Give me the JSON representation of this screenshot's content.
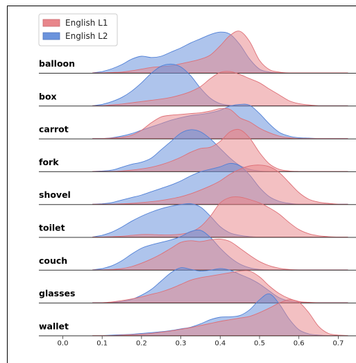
{
  "chart_data": {
    "type": "area",
    "subtype": "ridgeline-density",
    "x_ticks": [
      "0.0",
      "0.1",
      "0.2",
      "0.3",
      "0.4",
      "0.5",
      "0.6",
      "0.7"
    ],
    "x_tick_values": [
      0.0,
      0.1,
      0.2,
      0.3,
      0.4,
      0.5,
      0.6,
      0.7
    ],
    "xlim": [
      -0.05,
      0.72
    ],
    "legend": {
      "position": "top-left"
    },
    "series": [
      {
        "name": "English L1",
        "color": "#e8868b"
      },
      {
        "name": "English L2",
        "color": "#6b93dc"
      }
    ],
    "x": [
      0.1,
      0.125,
      0.15,
      0.175,
      0.2,
      0.225,
      0.25,
      0.275,
      0.3,
      0.325,
      0.35,
      0.375,
      0.4,
      0.425,
      0.45,
      0.475,
      0.5,
      0.525,
      0.55,
      0.575,
      0.6,
      0.625,
      0.65,
      0.675,
      0.7
    ],
    "rows": [
      {
        "label": "balloon",
        "l1": [
          0,
          0.01,
          0.02,
          0.05,
          0.09,
          0.13,
          0.15,
          0.17,
          0.22,
          0.27,
          0.33,
          0.43,
          0.65,
          0.9,
          1.0,
          0.75,
          0.3,
          0.08,
          0.02,
          0,
          0,
          0,
          0,
          0,
          0
        ],
        "l2": [
          0.03,
          0.1,
          0.2,
          0.33,
          0.4,
          0.37,
          0.4,
          0.5,
          0.6,
          0.72,
          0.82,
          0.92,
          0.98,
          0.93,
          0.68,
          0.33,
          0.09,
          0.02,
          0,
          0,
          0,
          0,
          0,
          0,
          0
        ]
      },
      {
        "label": "box",
        "l1": [
          0,
          0.02,
          0.04,
          0.07,
          0.1,
          0.13,
          0.16,
          0.2,
          0.26,
          0.34,
          0.46,
          0.65,
          0.8,
          0.82,
          0.75,
          0.65,
          0.55,
          0.4,
          0.26,
          0.12,
          0.05,
          0.02,
          0,
          0,
          0
        ],
        "l2": [
          0.03,
          0.1,
          0.2,
          0.35,
          0.55,
          0.78,
          0.95,
          1.0,
          0.93,
          0.72,
          0.42,
          0.18,
          0.05,
          0.01,
          0,
          0,
          0,
          0,
          0,
          0,
          0,
          0,
          0,
          0,
          0
        ]
      },
      {
        "label": "carrot",
        "l1": [
          0,
          0.01,
          0.03,
          0.08,
          0.2,
          0.38,
          0.52,
          0.56,
          0.58,
          0.6,
          0.62,
          0.66,
          0.72,
          0.7,
          0.5,
          0.4,
          0.25,
          0.14,
          0.06,
          0.02,
          0,
          0,
          0,
          0,
          0
        ],
        "l2": [
          0,
          0.02,
          0.06,
          0.12,
          0.2,
          0.28,
          0.36,
          0.44,
          0.5,
          0.55,
          0.58,
          0.62,
          0.68,
          0.78,
          0.82,
          0.8,
          0.6,
          0.35,
          0.15,
          0.06,
          0.02,
          0.01,
          0,
          0,
          0
        ]
      },
      {
        "label": "fork",
        "l1": [
          0,
          0,
          0.01,
          0.03,
          0.06,
          0.1,
          0.16,
          0.24,
          0.34,
          0.46,
          0.55,
          0.58,
          0.72,
          0.95,
          1.0,
          0.8,
          0.45,
          0.18,
          0.05,
          0.01,
          0,
          0,
          0,
          0,
          0
        ],
        "l2": [
          0.01,
          0.03,
          0.1,
          0.17,
          0.22,
          0.32,
          0.52,
          0.72,
          0.92,
          1.0,
          0.95,
          0.78,
          0.55,
          0.32,
          0.14,
          0.05,
          0.01,
          0,
          0,
          0,
          0,
          0,
          0,
          0,
          0
        ]
      },
      {
        "label": "shovel",
        "l1": [
          0,
          0,
          0.01,
          0.02,
          0.04,
          0.06,
          0.09,
          0.13,
          0.18,
          0.25,
          0.34,
          0.44,
          0.56,
          0.72,
          0.84,
          0.92,
          0.94,
          0.9,
          0.76,
          0.52,
          0.28,
          0.12,
          0.05,
          0.02,
          0
        ],
        "l2": [
          0.01,
          0.04,
          0.1,
          0.16,
          0.22,
          0.3,
          0.38,
          0.46,
          0.56,
          0.68,
          0.78,
          0.84,
          0.9,
          0.98,
          0.92,
          0.7,
          0.4,
          0.18,
          0.07,
          0.02,
          0,
          0,
          0,
          0,
          0
        ]
      },
      {
        "label": "toilet",
        "l1": [
          0,
          0.01,
          0.02,
          0.04,
          0.06,
          0.06,
          0.05,
          0.05,
          0.07,
          0.12,
          0.25,
          0.5,
          0.82,
          0.95,
          0.96,
          0.9,
          0.82,
          0.7,
          0.55,
          0.35,
          0.18,
          0.08,
          0.03,
          0.01,
          0
        ],
        "l2": [
          0.04,
          0.12,
          0.24,
          0.38,
          0.5,
          0.6,
          0.68,
          0.74,
          0.78,
          0.8,
          0.72,
          0.5,
          0.25,
          0.1,
          0.04,
          0.01,
          0,
          0,
          0,
          0,
          0,
          0,
          0,
          0,
          0
        ]
      },
      {
        "label": "couch",
        "l1": [
          0,
          0.01,
          0.03,
          0.08,
          0.16,
          0.26,
          0.38,
          0.52,
          0.66,
          0.7,
          0.68,
          0.72,
          0.74,
          0.68,
          0.52,
          0.35,
          0.2,
          0.1,
          0.04,
          0.01,
          0,
          0,
          0,
          0,
          0
        ],
        "l2": [
          0.03,
          0.1,
          0.22,
          0.38,
          0.52,
          0.6,
          0.66,
          0.72,
          0.8,
          0.92,
          0.95,
          0.78,
          0.52,
          0.3,
          0.14,
          0.05,
          0.01,
          0,
          0,
          0,
          0,
          0,
          0,
          0,
          0
        ]
      },
      {
        "label": "glasses",
        "l1": [
          0,
          0.02,
          0.05,
          0.09,
          0.14,
          0.2,
          0.26,
          0.34,
          0.44,
          0.54,
          0.6,
          0.64,
          0.68,
          0.72,
          0.76,
          0.76,
          0.62,
          0.4,
          0.22,
          0.1,
          0.03,
          0.01,
          0,
          0,
          0
        ],
        "l2": [
          0,
          0.01,
          0.03,
          0.08,
          0.18,
          0.32,
          0.52,
          0.72,
          0.84,
          0.8,
          0.76,
          0.78,
          0.82,
          0.78,
          0.68,
          0.58,
          0.45,
          0.28,
          0.12,
          0.04,
          0.01,
          0,
          0,
          0,
          0
        ]
      },
      {
        "label": "wallet",
        "l1": [
          0,
          0,
          0.01,
          0.02,
          0.03,
          0.05,
          0.08,
          0.11,
          0.15,
          0.19,
          0.24,
          0.29,
          0.34,
          0.38,
          0.42,
          0.46,
          0.55,
          0.66,
          0.78,
          0.86,
          0.8,
          0.55,
          0.22,
          0.05,
          0.01
        ],
        "l2": [
          0,
          0.01,
          0.02,
          0.03,
          0.05,
          0.07,
          0.09,
          0.12,
          0.16,
          0.2,
          0.28,
          0.38,
          0.44,
          0.45,
          0.48,
          0.62,
          0.86,
          1.0,
          0.76,
          0.4,
          0.14,
          0.04,
          0.01,
          0,
          0
        ]
      }
    ]
  }
}
